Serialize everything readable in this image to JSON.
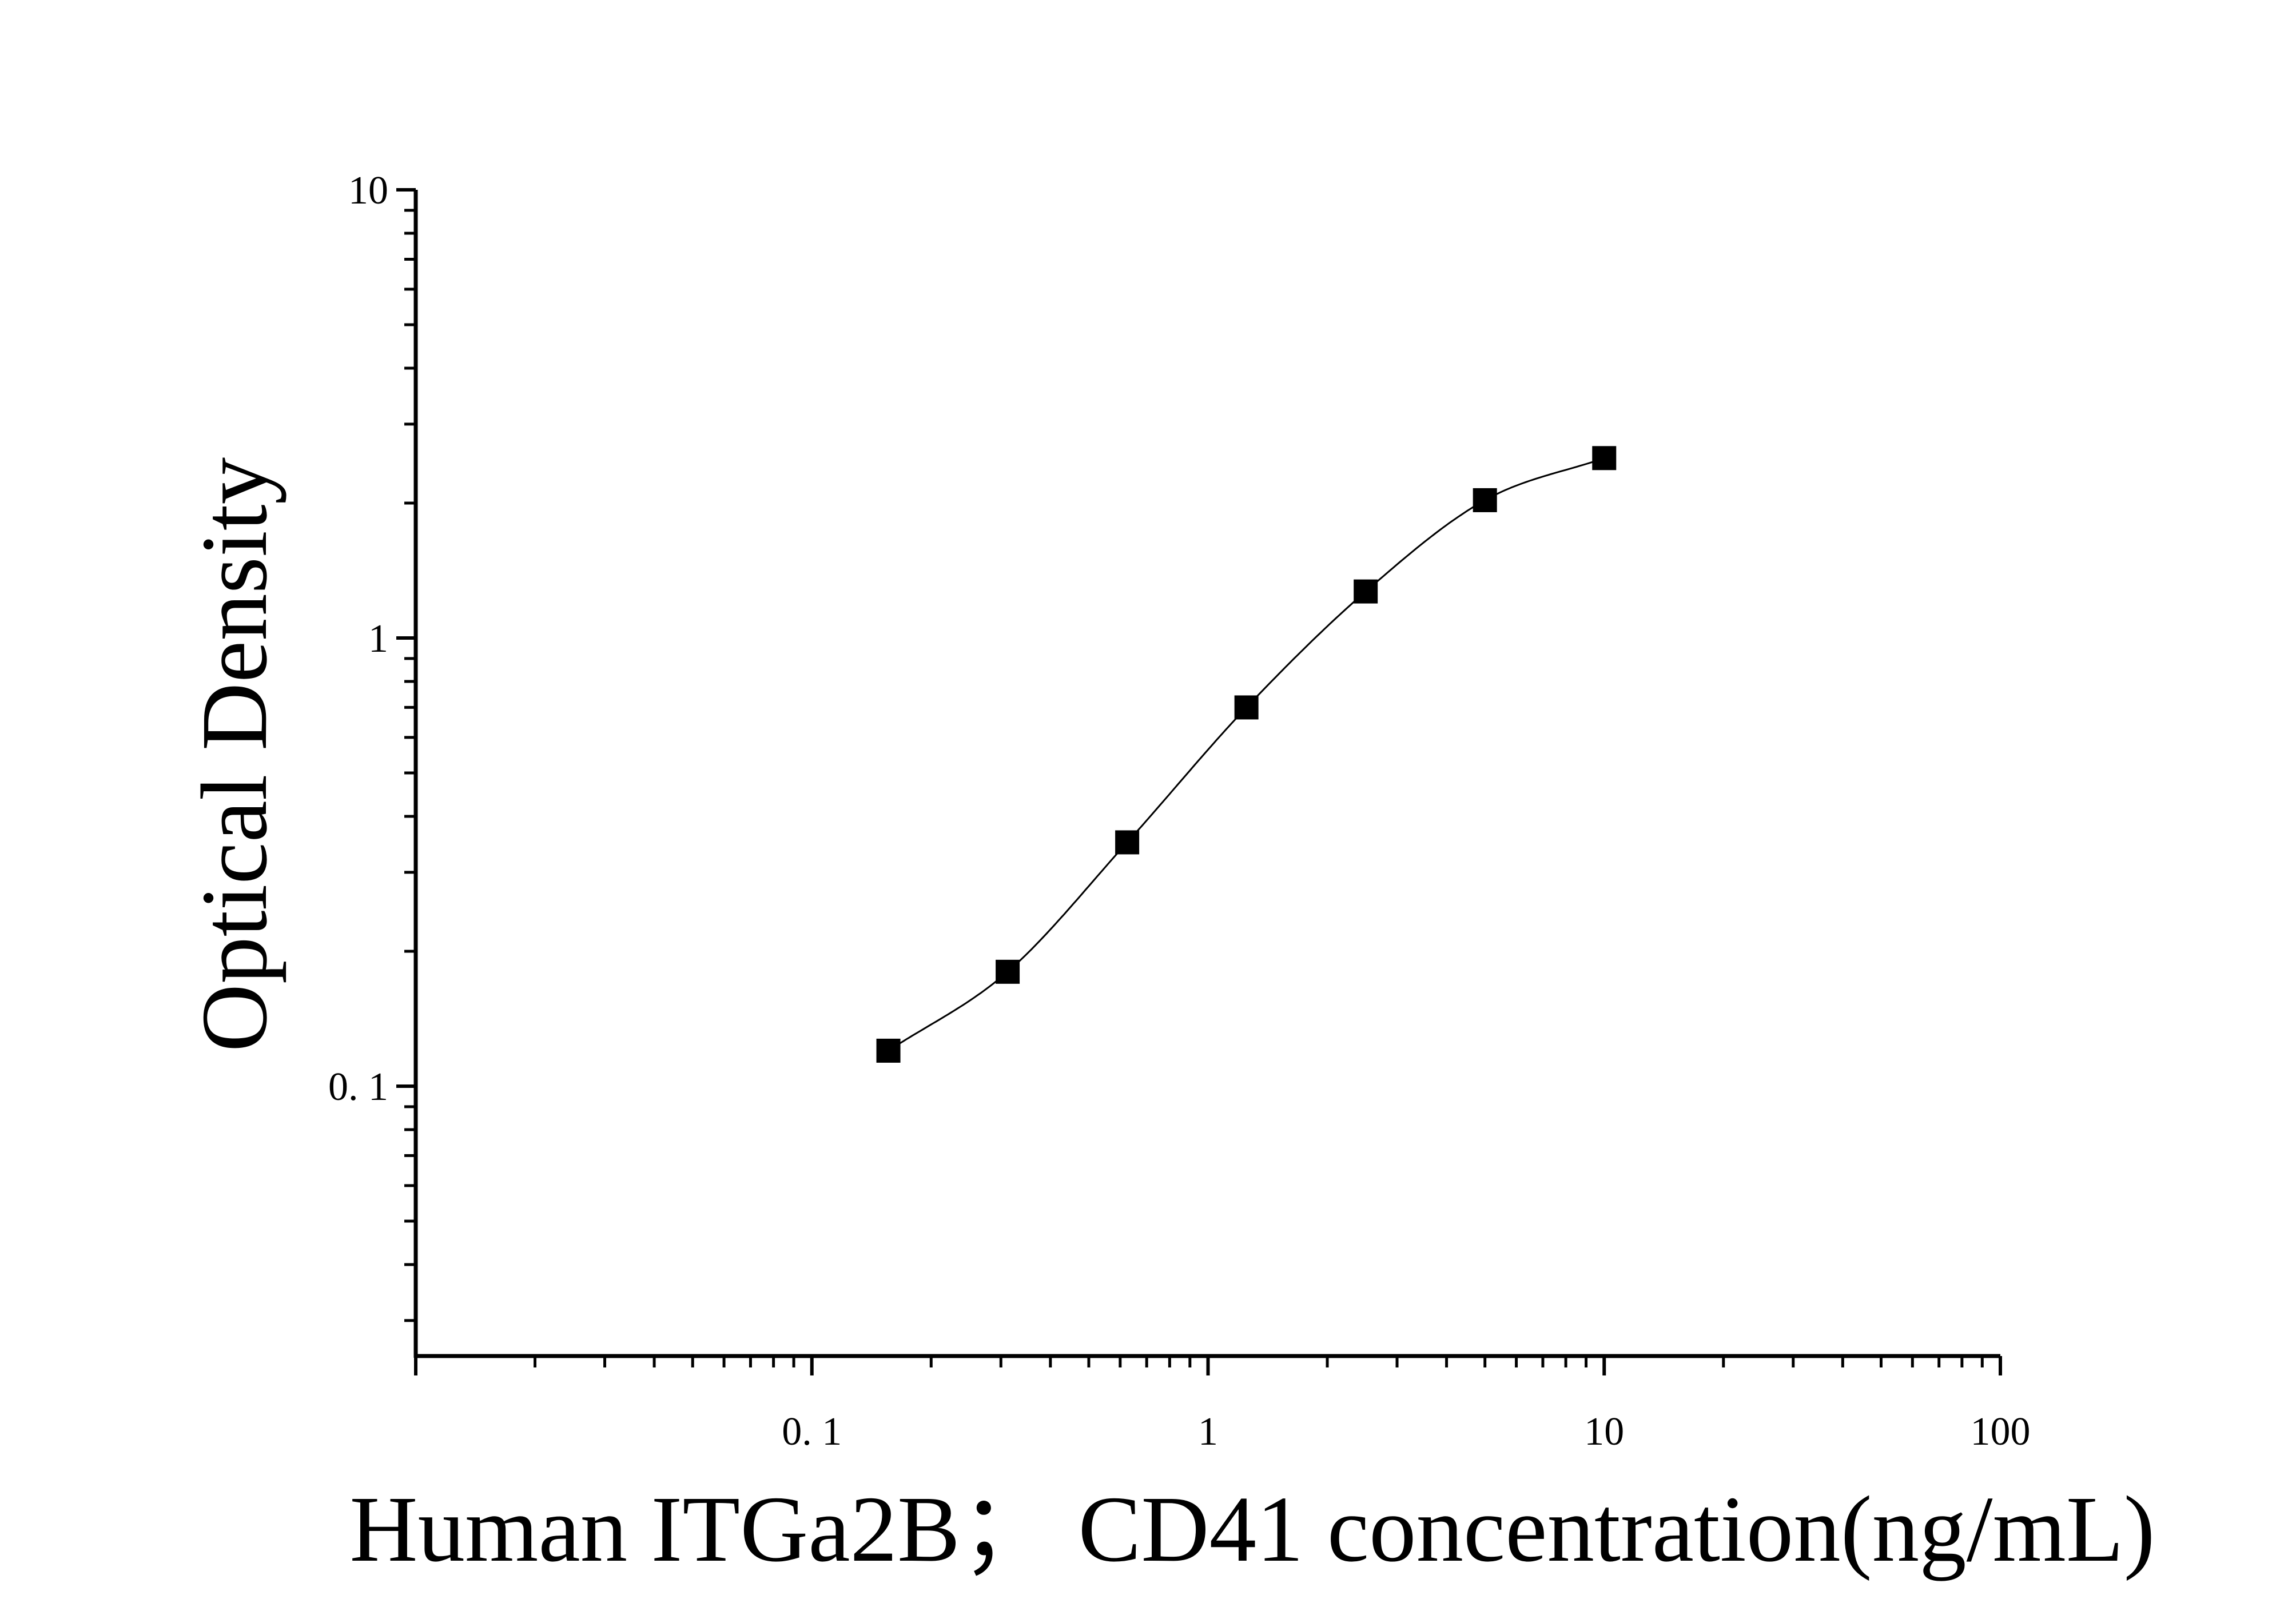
{
  "chart_data": {
    "type": "scatter",
    "title": "",
    "xlabel": "Human ITGa2B；  CD41 concentration(ng/mL)",
    "ylabel": "Optical Density",
    "x_scale": "log",
    "y_scale": "log",
    "xlim": [
      0.01,
      100
    ],
    "ylim": [
      0.025,
      10
    ],
    "x_ticks": [
      {
        "value": 0.1,
        "label": "0. 1"
      },
      {
        "value": 1,
        "label": "1"
      },
      {
        "value": 10,
        "label": "10"
      },
      {
        "value": 100,
        "label": "100"
      }
    ],
    "y_ticks": [
      {
        "value": 0.1,
        "label": "0. 1"
      },
      {
        "value": 1,
        "label": "1"
      },
      {
        "value": 10,
        "label": "10"
      }
    ],
    "grid": false,
    "legend": "none",
    "series": [
      {
        "marker": "square",
        "fit_line": true,
        "x": [
          0.156,
          0.312,
          0.625,
          1.25,
          2.5,
          5,
          10
        ],
        "y": [
          0.12,
          0.18,
          0.35,
          0.7,
          1.27,
          2.03,
          2.52
        ]
      }
    ],
    "colors": {
      "marker": "#000000",
      "line": "#000000",
      "axis": "#000000"
    }
  }
}
